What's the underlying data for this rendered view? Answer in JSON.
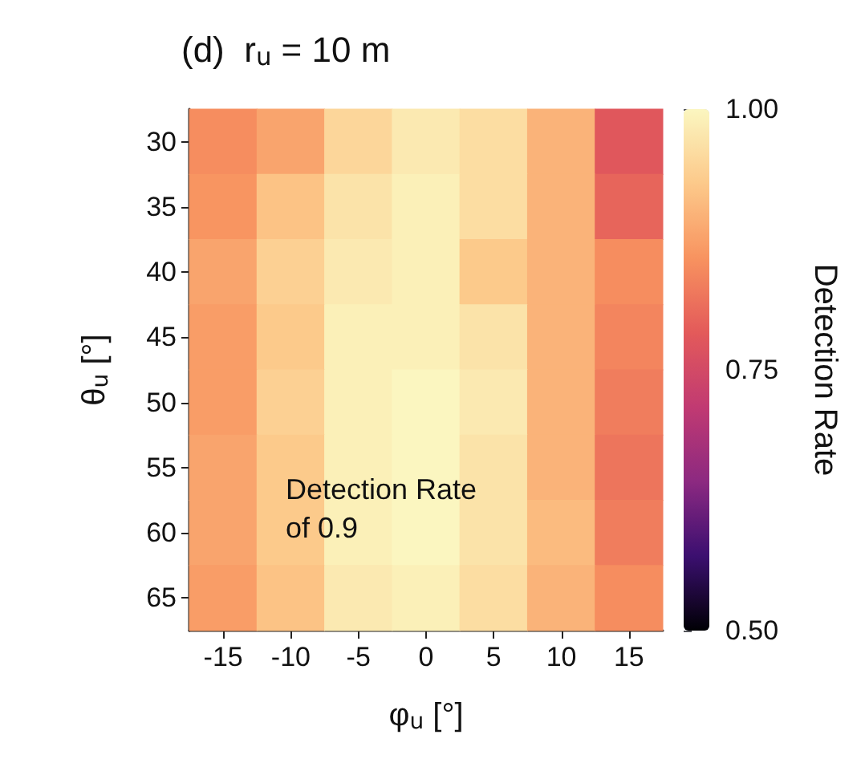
{
  "chart_data": {
    "type": "heatmap",
    "title": "(d)  r$_{u}$ = 10 m",
    "xlabel": "φ$_{u}$ [°]",
    "ylabel": "θ$_{u}$ [°]",
    "clabel": "Detection Rate",
    "categories": [
      "-15",
      "-10",
      "-5",
      "0",
      "5",
      "10",
      "15"
    ],
    "y_categories": [
      "30",
      "35",
      "40",
      "45",
      "50",
      "55",
      "60",
      "65"
    ],
    "cells": [
      [
        0.85,
        0.88,
        0.95,
        0.98,
        0.96,
        0.9,
        0.78
      ],
      [
        0.86,
        0.92,
        0.97,
        0.99,
        0.96,
        0.9,
        0.8
      ],
      [
        0.88,
        0.94,
        0.98,
        0.99,
        0.93,
        0.9,
        0.85
      ],
      [
        0.87,
        0.93,
        0.99,
        0.99,
        0.97,
        0.9,
        0.84
      ],
      [
        0.87,
        0.94,
        0.99,
        1.0,
        0.98,
        0.9,
        0.83
      ],
      [
        0.88,
        0.93,
        0.99,
        1.0,
        0.97,
        0.9,
        0.82
      ],
      [
        0.88,
        0.93,
        0.99,
        1.0,
        0.97,
        0.91,
        0.83
      ],
      [
        0.87,
        0.92,
        0.98,
        0.99,
        0.96,
        0.9,
        0.85
      ]
    ],
    "clim": [
      0.5,
      1.0
    ],
    "cticks": [
      {
        "value": 0.5,
        "label": "0.50"
      },
      {
        "value": 0.75,
        "label": "0.75"
      },
      {
        "value": 1.0,
        "label": "1.00"
      }
    ],
    "annotations": [
      "Detection Rate\nof 0.9"
    ]
  }
}
